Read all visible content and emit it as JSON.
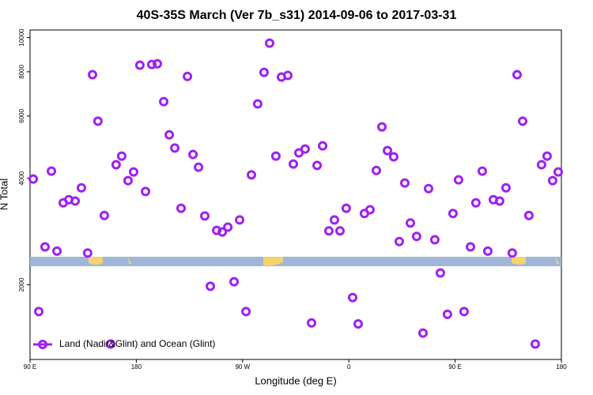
{
  "chart_data": {
    "type": "scatter",
    "title": "40S-35S March (Ver 7b_s31)   2014-09-06 to 2017-03-31",
    "xlabel": "Longitude (deg E)",
    "ylabel": "N Total",
    "x": [
      92.7,
      97.4,
      102.7,
      108.1,
      112.8,
      118.1,
      122.8,
      128.2,
      133.5,
      138.8,
      142.9,
      147.5,
      152.9,
      158.2,
      162.9,
      167.6,
      173.0,
      177.7,
      183.0,
      187.8,
      193.1,
      197.8,
      203.2,
      207.9,
      212.6,
      217.9,
      223.3,
      228.0,
      232.7,
      238.0,
      242.7,
      248.1,
      252.8,
      257.5,
      262.8,
      267.5,
      272.9,
      277.5,
      282.8,
      288.2,
      292.9,
      298.2,
      302.9,
      308.3,
      313.0,
      317.7,
      323.0,
      328.4,
      333.1,
      337.8,
      343.1,
      347.8,
      352.5,
      357.8,
      363.2,
      367.9,
      373.2,
      377.9,
      383.3,
      388.0,
      392.7,
      398.0,
      402.7,
      407.4,
      412.1,
      417.4,
      422.8,
      427.5,
      432.8,
      437.5,
      443.5,
      448.2,
      452.9,
      457.6,
      463.0,
      467.6,
      473.0,
      477.7,
      482.4,
      487.7,
      493.1,
      498.4,
      502.5,
      507.2,
      512.5,
      517.9,
      523.2,
      527.9,
      532.6,
      537.3
    ],
    "series": [
      {
        "name": "Land (Nadir&Glint) and Ocean (Glint)",
        "color": "#a020f0",
        "values": [
          3980,
          1680,
          2560,
          4190,
          2490,
          3410,
          3480,
          3450,
          3760,
          2460,
          7850,
          5800,
          3140,
          1360,
          4370,
          4620,
          3940,
          4170,
          8350,
          3670,
          8390,
          8430,
          6590,
          5310,
          4870,
          3290,
          7760,
          4670,
          4300,
          3130,
          1980,
          2850,
          2820,
          2910,
          2040,
          3050,
          1680,
          4090,
          6490,
          7970,
          9640,
          4620,
          7730,
          7810,
          4390,
          4720,
          4840,
          1560,
          4350,
          4940,
          2840,
          3050,
          2840,
          3290,
          1840,
          1550,
          3180,
          3260,
          4210,
          5590,
          4790,
          4600,
          2650,
          3880,
          2990,
          2740,
          1460,
          3740,
          2680,
          2160,
          1650,
          3180,
          3960,
          1680,
          2560,
          3410,
          4190,
          2490,
          3480,
          3450,
          3760,
          2460,
          7850,
          5800,
          3140,
          1360,
          4370,
          4620,
          3940,
          4170
        ]
      }
    ],
    "xlim": [
      90,
      540
    ],
    "xticks": [
      {
        "value": 90,
        "label": "90 E"
      },
      180,
      {
        "value": 270,
        "label": "90 W"
      },
      {
        "value": 360,
        "label": "0"
      },
      {
        "value": 450,
        "label": "90 E"
      },
      {
        "value": 540,
        "label": "180"
      }
    ],
    "ylim": [
      1230,
      10500
    ],
    "ylog": true,
    "yticks": [
      2000,
      4000,
      6000,
      8000,
      10000
    ],
    "legend": "bottom-left"
  }
}
